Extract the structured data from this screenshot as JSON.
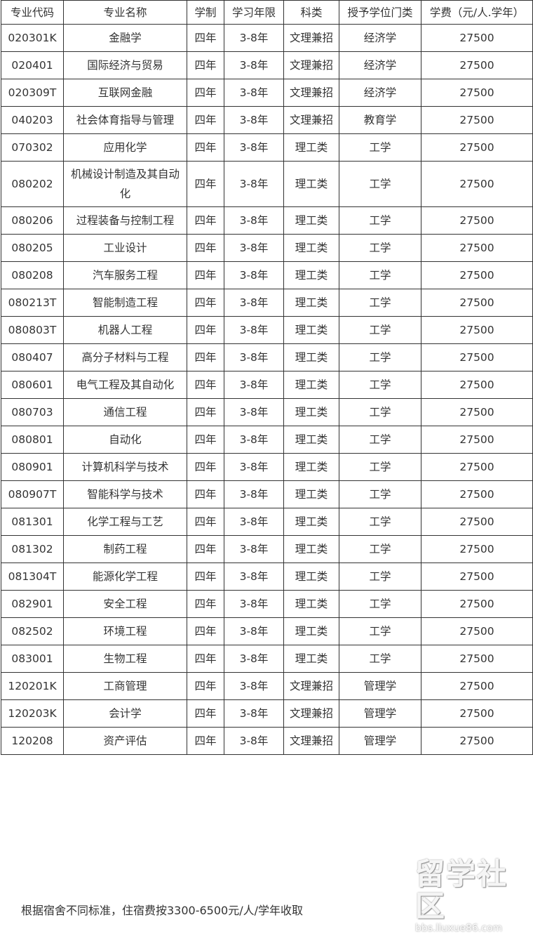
{
  "table": {
    "headers": [
      "专业代码",
      "专业名称",
      "学制",
      "学习年限",
      "科类",
      "授予学位门类",
      "学费（元/人.学年）"
    ],
    "rows": [
      [
        "020301K",
        "金融学",
        "四年",
        "3-8年",
        "文理兼招",
        "经济学",
        "27500"
      ],
      [
        "020401",
        "国际经济与贸易",
        "四年",
        "3-8年",
        "文理兼招",
        "经济学",
        "27500"
      ],
      [
        "020309T",
        "互联网金融",
        "四年",
        "3-8年",
        "文理兼招",
        "经济学",
        "27500"
      ],
      [
        "040203",
        "社会体育指导与管理",
        "四年",
        "3-8年",
        "文理兼招",
        "教育学",
        "27500"
      ],
      [
        "070302",
        "应用化学",
        "四年",
        "3-8年",
        "理工类",
        "工学",
        "27500"
      ],
      [
        "080202",
        "机械设计制造及其自动化",
        "四年",
        "3-8年",
        "理工类",
        "工学",
        "27500"
      ],
      [
        "080206",
        "过程装备与控制工程",
        "四年",
        "3-8年",
        "理工类",
        "工学",
        "27500"
      ],
      [
        "080205",
        "工业设计",
        "四年",
        "3-8年",
        "理工类",
        "工学",
        "27500"
      ],
      [
        "080208",
        "汽车服务工程",
        "四年",
        "3-8年",
        "理工类",
        "工学",
        "27500"
      ],
      [
        "080213T",
        "智能制造工程",
        "四年",
        "3-8年",
        "理工类",
        "工学",
        "27500"
      ],
      [
        "080803T",
        "机器人工程",
        "四年",
        "3-8年",
        "理工类",
        "工学",
        "27500"
      ],
      [
        "080407",
        "高分子材料与工程",
        "四年",
        "3-8年",
        "理工类",
        "工学",
        "27500"
      ],
      [
        "080601",
        "电气工程及其自动化",
        "四年",
        "3-8年",
        "理工类",
        "工学",
        "27500"
      ],
      [
        "080703",
        "通信工程",
        "四年",
        "3-8年",
        "理工类",
        "工学",
        "27500"
      ],
      [
        "080801",
        "自动化",
        "四年",
        "3-8年",
        "理工类",
        "工学",
        "27500"
      ],
      [
        "080901",
        "计算机科学与技术",
        "四年",
        "3-8年",
        "理工类",
        "工学",
        "27500"
      ],
      [
        "080907T",
        "智能科学与技术",
        "四年",
        "3-8年",
        "理工类",
        "工学",
        "27500"
      ],
      [
        "081301",
        "化学工程与工艺",
        "四年",
        "3-8年",
        "理工类",
        "工学",
        "27500"
      ],
      [
        "081302",
        "制药工程",
        "四年",
        "3-8年",
        "理工类",
        "工学",
        "27500"
      ],
      [
        "081304T",
        "能源化学工程",
        "四年",
        "3-8年",
        "理工类",
        "工学",
        "27500"
      ],
      [
        "082901",
        "安全工程",
        "四年",
        "3-8年",
        "理工类",
        "工学",
        "27500"
      ],
      [
        "082502",
        "环境工程",
        "四年",
        "3-8年",
        "理工类",
        "工学",
        "27500"
      ],
      [
        "083001",
        "生物工程",
        "四年",
        "3-8年",
        "理工类",
        "工学",
        "27500"
      ],
      [
        "120201K",
        "工商管理",
        "四年",
        "3-8年",
        "文理兼招",
        "管理学",
        "27500"
      ],
      [
        "120203K",
        "会计学",
        "四年",
        "3-8年",
        "文理兼招",
        "管理学",
        "27500"
      ],
      [
        "120208",
        "资产评估",
        "四年",
        "3-8年",
        "文理兼招",
        "管理学",
        "27500"
      ]
    ]
  },
  "note": "根据宿舍不同标准，住宿费按3300-6500元/人/学年收取",
  "watermark": {
    "title": "留学社区",
    "url": "bbs.liuxue86.com"
  }
}
